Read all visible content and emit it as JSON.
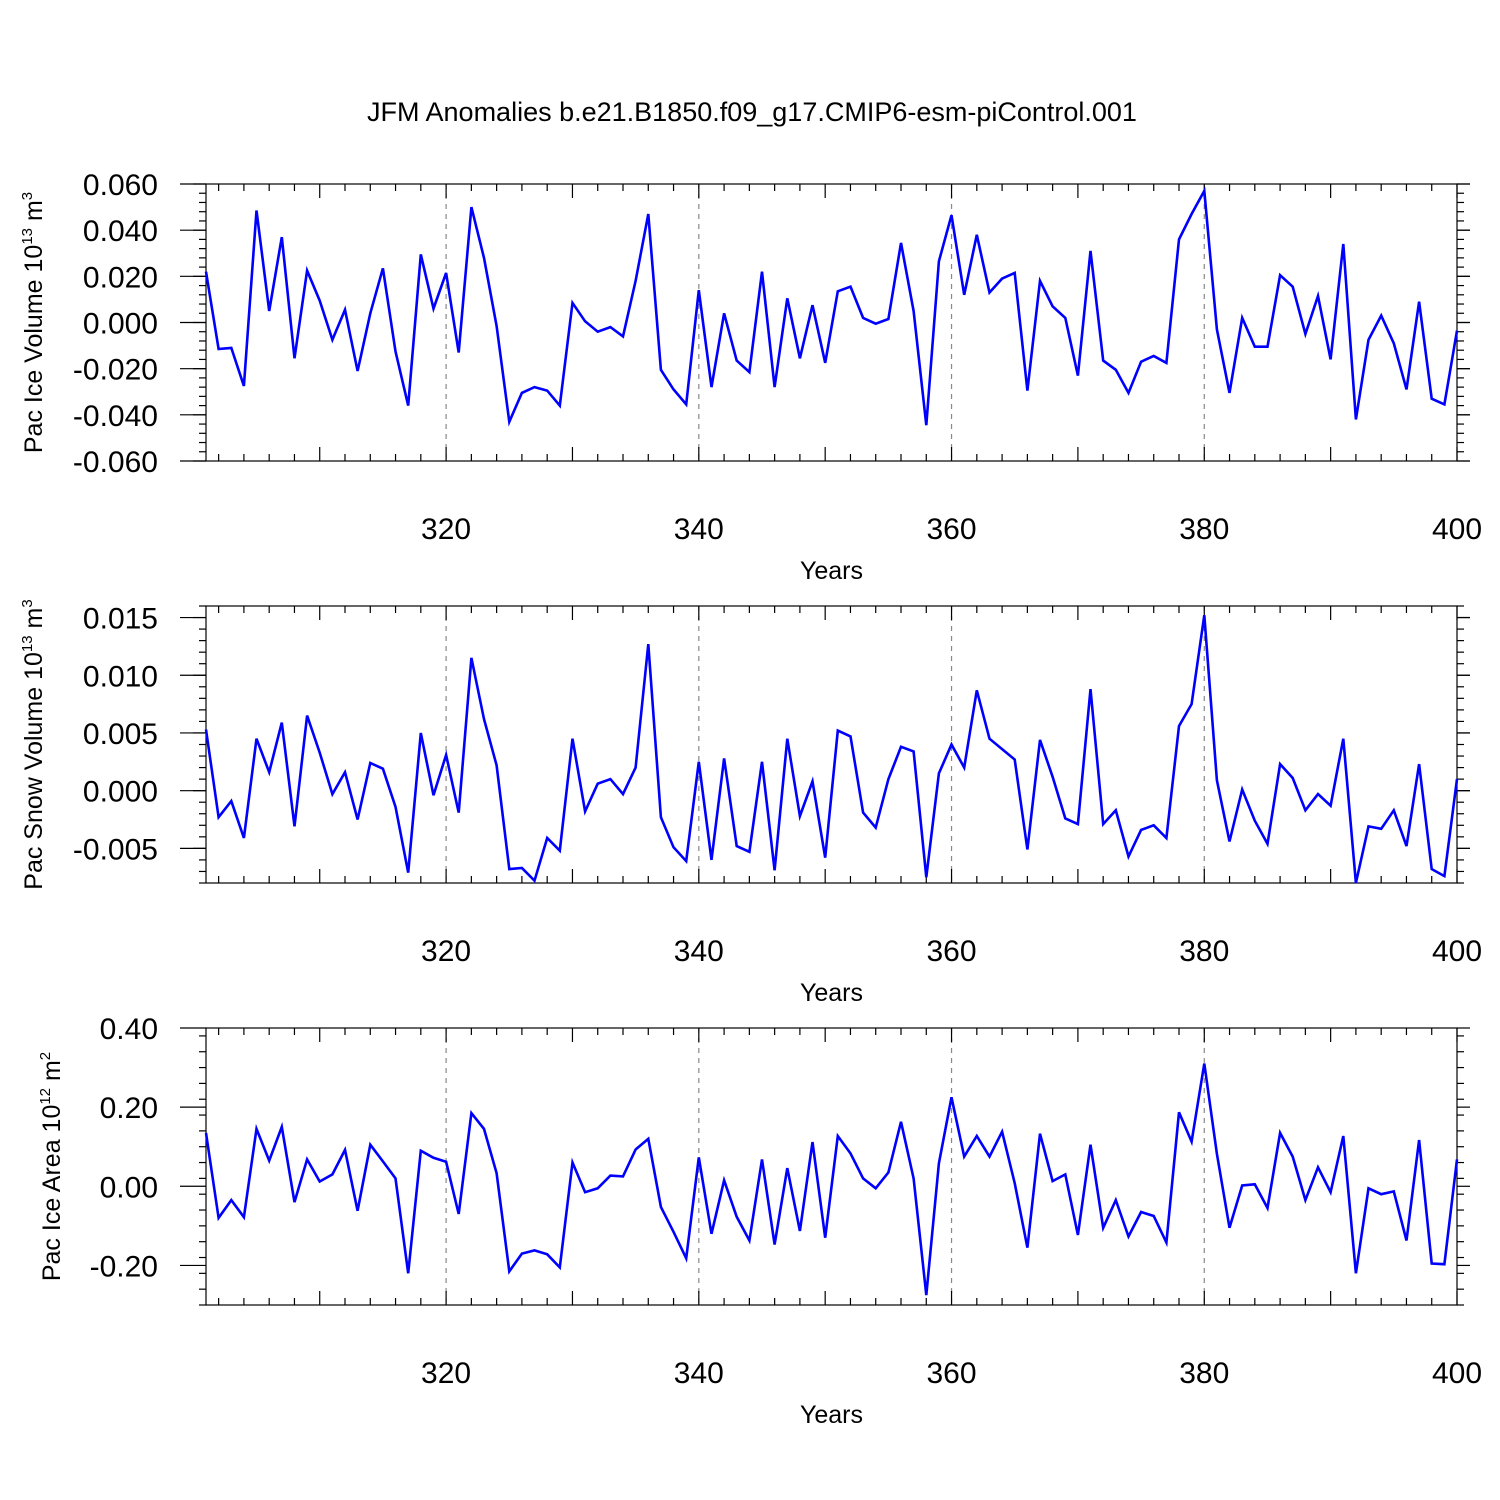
{
  "title": "JFM Anomalies b.e21.B1850.f09_g17.CMIP6-esm-piControl.001",
  "colors": {
    "line": "#0000ff",
    "grid": "#888888",
    "axes": "#000000"
  },
  "chart_data": [
    {
      "type": "line",
      "xlabel": "Years",
      "ylabel": {
        "prefix": "Pac Ice Volume 10",
        "exp": "13",
        "unit": " m",
        "unit_exp": "3"
      },
      "xlim": [
        301,
        400
      ],
      "ylim": [
        -0.06,
        0.06
      ],
      "xticks": [
        "320",
        "340",
        "360",
        "380",
        "400"
      ],
      "yticks": [
        "0.060",
        "0.040",
        "0.020",
        "0.000",
        "-0.020",
        "-0.040",
        "-0.060"
      ],
      "ytick_values": [
        0.06,
        0.04,
        0.02,
        0.0,
        -0.02,
        -0.04,
        -0.06
      ],
      "xgrid": [
        320,
        340,
        360,
        380
      ],
      "x_start": 301,
      "values": [
        0.022,
        -0.0115,
        -0.011,
        -0.0275,
        0.0485,
        0.005,
        0.037,
        -0.0155,
        0.0225,
        0.0095,
        -0.0075,
        0.0055,
        -0.021,
        0.004,
        0.0235,
        -0.0125,
        -0.036,
        0.0295,
        0.006,
        0.0215,
        -0.013,
        0.05,
        0.028,
        -0.0015,
        -0.043,
        -0.0305,
        -0.028,
        -0.0295,
        -0.036,
        0.0085,
        0.0005,
        -0.004,
        -0.002,
        -0.006,
        0.018,
        0.047,
        -0.0205,
        -0.029,
        -0.0355,
        0.014,
        -0.028,
        0.004,
        -0.0165,
        -0.0215,
        0.022,
        -0.028,
        0.0105,
        -0.0155,
        0.0075,
        -0.0175,
        0.0135,
        0.0155,
        0.002,
        -0.0005,
        0.0015,
        0.0345,
        0.005,
        -0.0445,
        0.0265,
        0.0465,
        0.012,
        0.038,
        0.013,
        0.019,
        0.0215,
        -0.0295,
        0.018,
        0.007,
        0.002,
        -0.023,
        0.031,
        -0.0165,
        -0.0205,
        -0.0305,
        -0.017,
        -0.0145,
        -0.0175,
        0.036,
        0.047,
        0.057,
        -0.003,
        -0.0305,
        0.002,
        -0.0105,
        -0.0105,
        0.0205,
        0.0155,
        -0.005,
        0.0115,
        -0.016,
        0.034,
        -0.042,
        -0.0075,
        0.003,
        -0.009,
        -0.029,
        0.009,
        -0.033,
        -0.0355,
        -0.0035
      ]
    },
    {
      "type": "line",
      "xlabel": "Years",
      "ylabel": {
        "prefix": "Pac Snow Volume 10",
        "exp": "13",
        "unit": " m",
        "unit_exp": "3"
      },
      "xlim": [
        301,
        400
      ],
      "ylim": [
        -0.008,
        0.016
      ],
      "xticks": [
        "320",
        "340",
        "360",
        "380",
        "400"
      ],
      "yticks": [
        "0.015",
        "0.010",
        "0.005",
        "0.000",
        "-0.005"
      ],
      "ytick_values": [
        0.015,
        0.01,
        0.005,
        0.0,
        -0.005
      ],
      "xgrid": [
        320,
        340,
        360,
        380
      ],
      "x_start": 301,
      "values": [
        0.0053,
        -0.0023,
        -0.0009,
        -0.0041,
        0.0045,
        0.0016,
        0.0059,
        -0.0031,
        0.0065,
        0.0033,
        -0.0003,
        0.0016,
        -0.0025,
        0.0024,
        0.0019,
        -0.0014,
        -0.0071,
        0.005,
        -0.0004,
        0.0031,
        -0.0019,
        0.0115,
        0.0062,
        0.0022,
        -0.0068,
        -0.0067,
        -0.0078,
        -0.0041,
        -0.0052,
        0.0045,
        -0.0018,
        0.0006,
        0.001,
        -0.0003,
        0.002,
        0.0127,
        -0.0023,
        -0.0049,
        -0.0061,
        0.0025,
        -0.006,
        0.0028,
        -0.0048,
        -0.0053,
        0.0025,
        -0.0069,
        0.0045,
        -0.0022,
        0.0008,
        -0.0058,
        0.0052,
        0.0047,
        -0.0019,
        -0.0032,
        0.001,
        0.0038,
        0.0034,
        -0.0075,
        0.0015,
        0.004,
        0.002,
        0.0087,
        0.0045,
        0.0036,
        0.0027,
        -0.0051,
        0.0044,
        0.0012,
        -0.0024,
        -0.0029,
        0.0088,
        -0.0029,
        -0.0017,
        -0.0057,
        -0.0034,
        -0.003,
        -0.0041,
        0.0056,
        0.0075,
        0.0152,
        0.0009,
        -0.0044,
        0.0001,
        -0.0026,
        -0.0046,
        0.0023,
        0.0011,
        -0.0017,
        -0.0003,
        -0.0013,
        0.0045,
        -0.008,
        -0.0031,
        -0.0033,
        -0.0017,
        -0.0048,
        0.0023,
        -0.0068,
        -0.0074,
        0.001
      ]
    },
    {
      "type": "line",
      "xlabel": "Years",
      "ylabel": {
        "prefix": "Pac Ice Area 10",
        "exp": "12",
        "unit": " m",
        "unit_exp": "2"
      },
      "xlim": [
        301,
        400
      ],
      "ylim": [
        -0.3,
        0.4
      ],
      "xticks": [
        "320",
        "340",
        "360",
        "380",
        "400"
      ],
      "yticks": [
        "0.40",
        "0.20",
        "0.00",
        "-0.20"
      ],
      "ytick_values": [
        0.4,
        0.2,
        0.0,
        -0.2
      ],
      "xgrid": [
        320,
        340,
        360,
        380
      ],
      "x_start": 301,
      "values": [
        0.135,
        -0.08,
        -0.035,
        -0.078,
        0.145,
        0.065,
        0.15,
        -0.04,
        0.068,
        0.012,
        0.03,
        0.092,
        -0.062,
        0.105,
        0.063,
        0.02,
        -0.22,
        0.09,
        0.072,
        0.062,
        -0.07,
        0.185,
        0.145,
        0.033,
        -0.215,
        -0.17,
        -0.162,
        -0.172,
        -0.205,
        0.06,
        -0.015,
        -0.005,
        0.027,
        0.025,
        0.093,
        0.12,
        -0.052,
        -0.115,
        -0.182,
        0.073,
        -0.12,
        0.015,
        -0.077,
        -0.137,
        0.068,
        -0.147,
        0.046,
        -0.113,
        0.112,
        -0.13,
        0.127,
        0.083,
        0.02,
        -0.005,
        0.035,
        0.163,
        0.02,
        -0.275,
        0.058,
        0.225,
        0.075,
        0.127,
        0.075,
        0.138,
        0.008,
        -0.155,
        0.133,
        0.013,
        0.03,
        -0.123,
        0.105,
        -0.105,
        -0.035,
        -0.127,
        -0.065,
        -0.075,
        -0.142,
        0.187,
        0.113,
        0.31,
        0.082,
        -0.105,
        0.002,
        0.005,
        -0.055,
        0.135,
        0.075,
        -0.035,
        0.048,
        -0.015,
        0.127,
        -0.22,
        -0.005,
        -0.02,
        -0.013,
        -0.137,
        0.117,
        -0.195,
        -0.197,
        0.068
      ]
    }
  ]
}
